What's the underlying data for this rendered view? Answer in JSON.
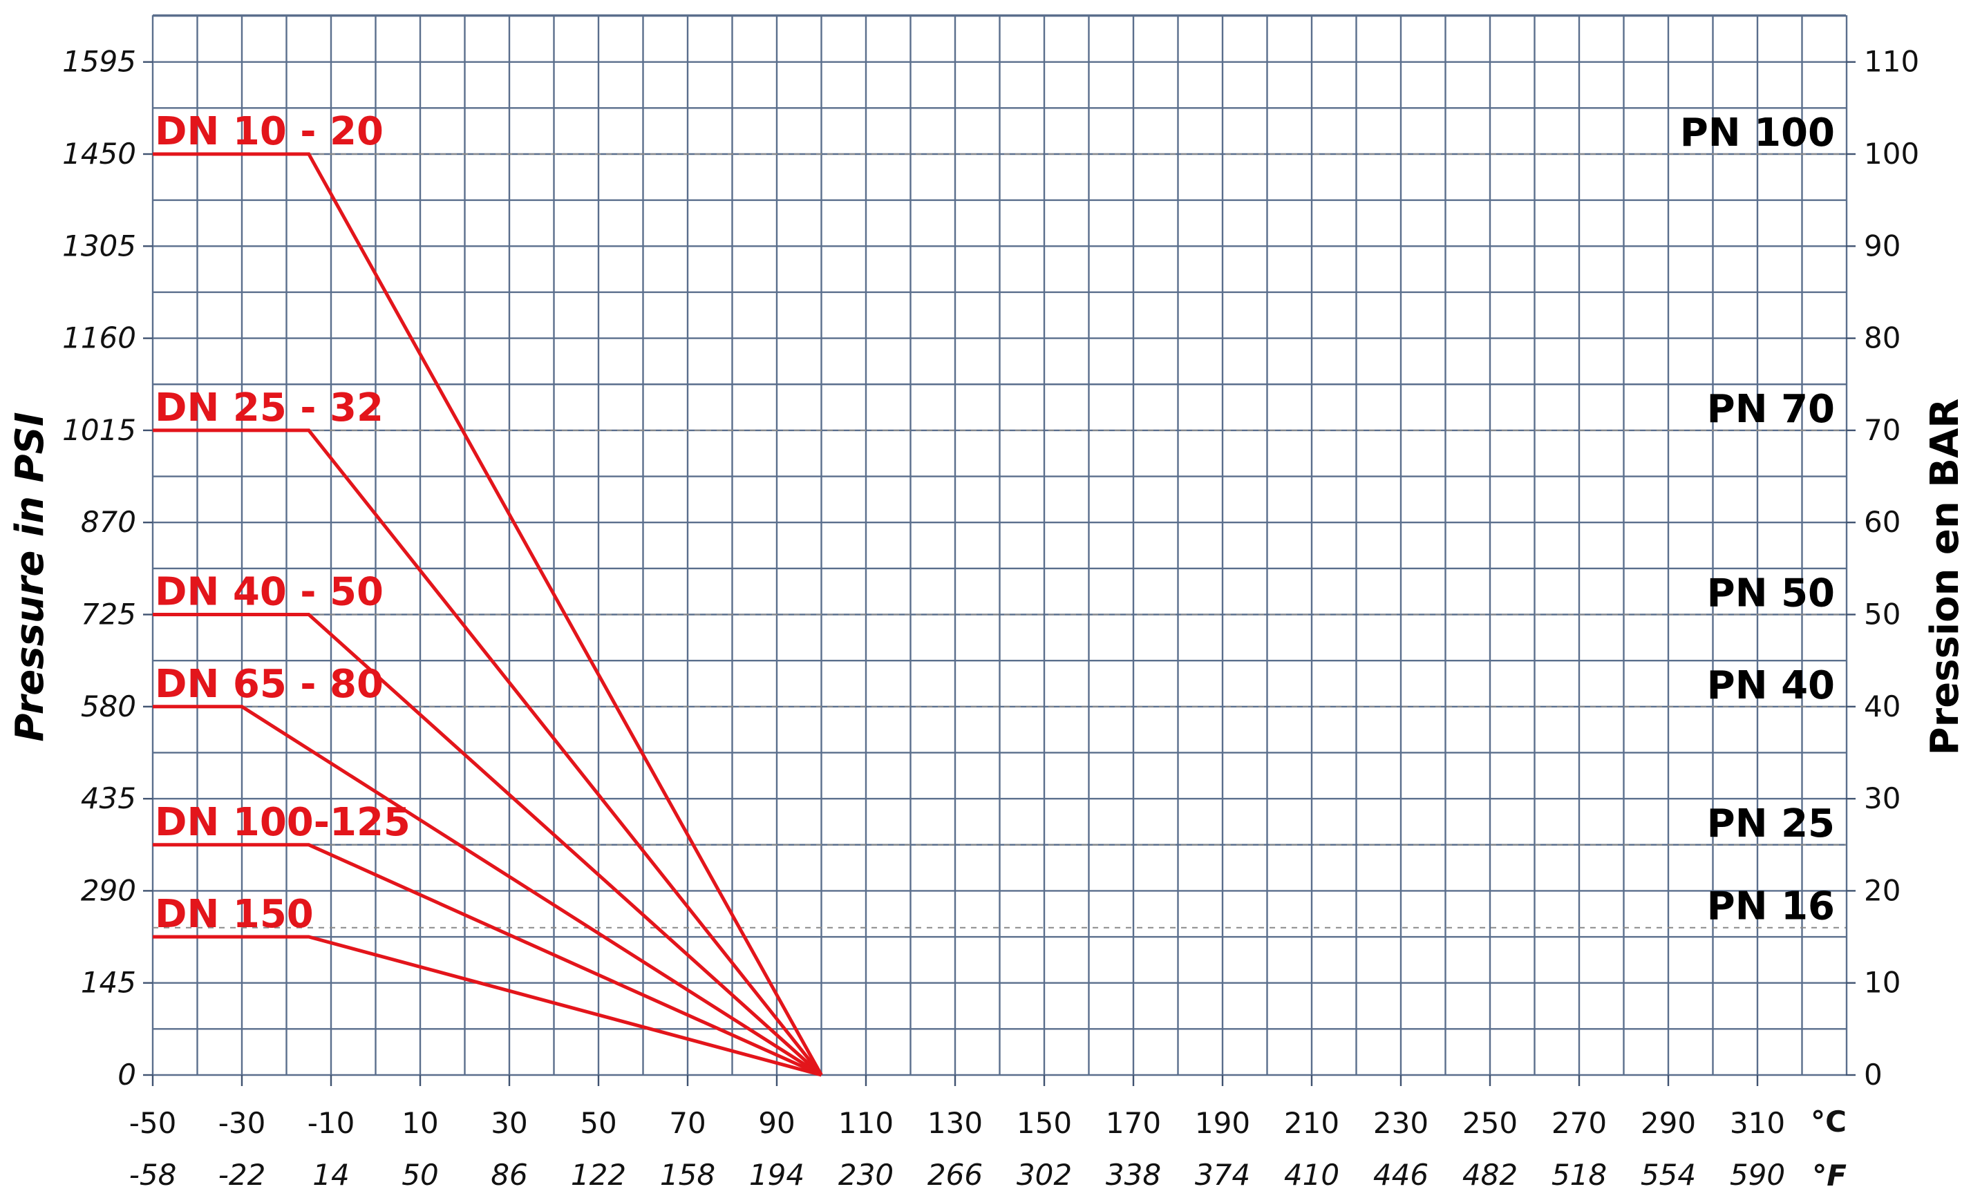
{
  "chart_data": {
    "type": "line",
    "title": "",
    "xlabel": "",
    "ylabel_left": "Pressure in PSI",
    "ylabel_right": "Pression en BAR",
    "x_unit_c": "°C",
    "x_unit_f": "°F",
    "xlim": [
      -50,
      330
    ],
    "ylim_bar": [
      0,
      115
    ],
    "x_ticks_c": [
      "-50",
      "-30",
      "-10",
      "10",
      "30",
      "50",
      "70",
      "90",
      "110",
      "130",
      "150",
      "170",
      "190",
      "210",
      "230",
      "250",
      "270",
      "290",
      "310"
    ],
    "x_ticks_f": [
      "-58",
      "-22",
      "14",
      "50",
      "86",
      "122",
      "158",
      "194",
      "230",
      "266",
      "302",
      "338",
      "374",
      "410",
      "446",
      "482",
      "518",
      "554",
      "590"
    ],
    "y_ticks_psi": [
      "0",
      "145",
      "290",
      "435",
      "580",
      "725",
      "870",
      "1015",
      "1160",
      "1305",
      "1450",
      "1595"
    ],
    "y_ticks_bar": [
      "0",
      "10",
      "20",
      "30",
      "40",
      "50",
      "60",
      "70",
      "80",
      "90",
      "100",
      "110"
    ],
    "pn_ratings": [
      {
        "label": "PN 100",
        "bar": 100
      },
      {
        "label": "PN 70",
        "bar": 70
      },
      {
        "label": "PN 50",
        "bar": 50
      },
      {
        "label": "PN 40",
        "bar": 40
      },
      {
        "label": "PN 25",
        "bar": 25
      },
      {
        "label": "PN 16",
        "bar": 16
      }
    ],
    "series": [
      {
        "name": "DN 10 - 20",
        "x": [
          -50,
          -15,
          100
        ],
        "y": [
          100,
          100,
          0
        ]
      },
      {
        "name": "DN 25 - 32",
        "x": [
          -50,
          -15,
          100
        ],
        "y": [
          70,
          70,
          0
        ]
      },
      {
        "name": "DN 40 - 50",
        "x": [
          -50,
          -15,
          100
        ],
        "y": [
          50,
          50,
          0
        ]
      },
      {
        "name": "DN 65 - 80",
        "x": [
          -50,
          -30,
          100
        ],
        "y": [
          40,
          40,
          0
        ]
      },
      {
        "name": "DN 100-125",
        "x": [
          -50,
          -15,
          100
        ],
        "y": [
          25,
          25,
          0
        ]
      },
      {
        "name": "DN 150",
        "x": [
          -50,
          -15,
          100
        ],
        "y": [
          15,
          15,
          0
        ]
      }
    ],
    "grid": true,
    "colors": {
      "series": "#e3151b",
      "grid": "#5a6e8c",
      "dashed": "#8a8a8a"
    }
  }
}
